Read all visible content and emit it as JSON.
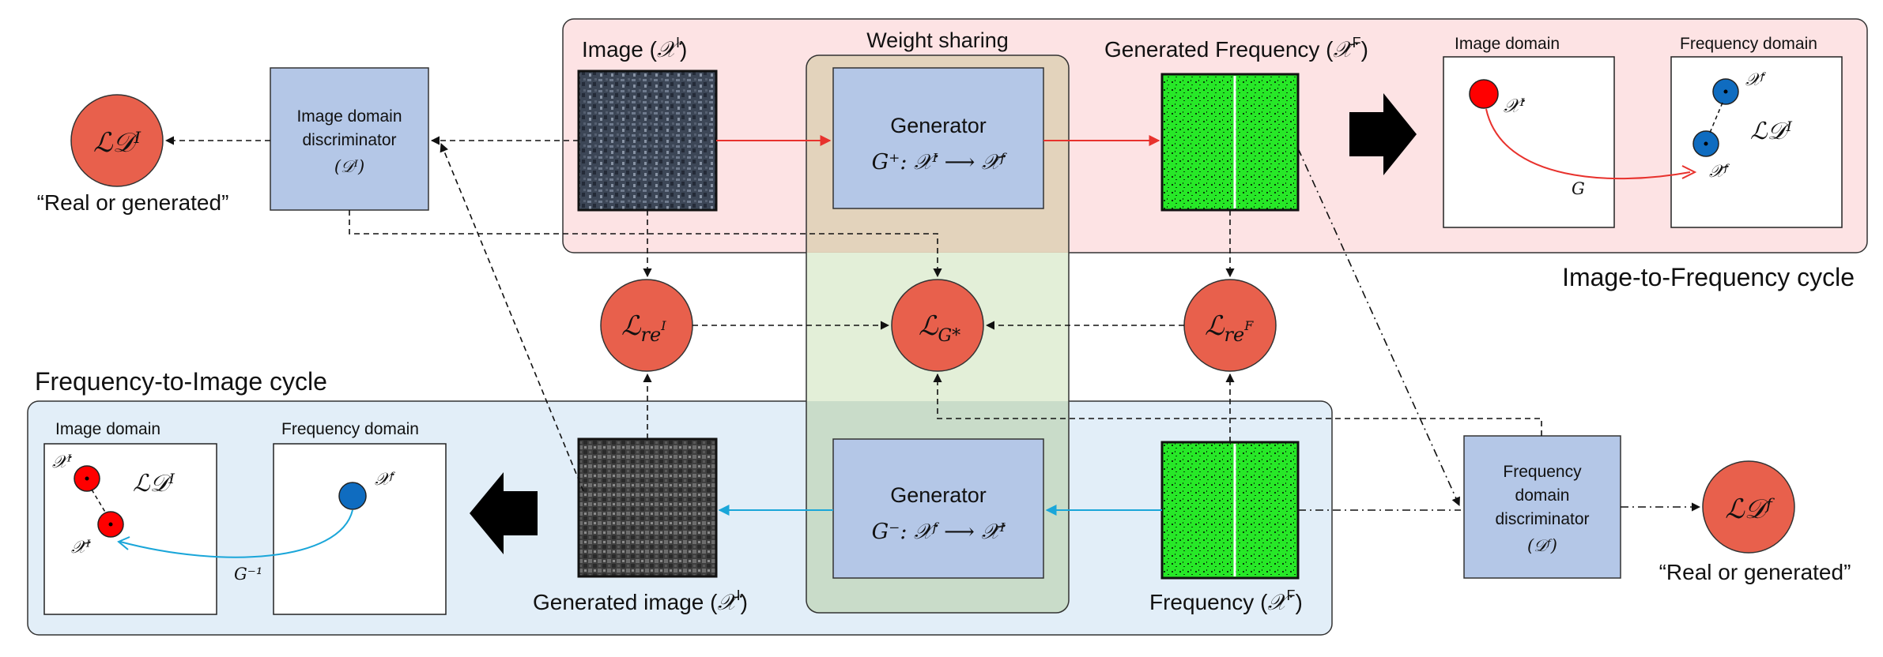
{
  "colors": {
    "red_arrow": "#e8322d",
    "blue_arrow": "#1aa6d9",
    "panel_pink": "#fde3e4",
    "panel_blue": "#e2eef8",
    "shared_beige": "#e2d2b9",
    "shared_green": "#e3efd8",
    "shared_dark": "#c9dcc9",
    "box_fill": "#b4c7e7",
    "loss_fill": "#e8604c",
    "point_red": "#ff0000",
    "point_blue": "#0f6cc0",
    "spectrum": "#27e827"
  },
  "top_cycle": {
    "title": "Image-to-Frequency cycle",
    "image_label": "Image (",
    "image_sym": "𝒳",
    "image_sup": "I",
    "gen_freq_label": "Generated Frequency (",
    "gen_freq_sym": "𝒳̄",
    "gen_freq_sup": "F",
    "generator_title": "Generator",
    "generator_formula": "G⁺: 𝒳ᴵ ⟶ 𝒳̄ᶠ",
    "image_domain": "Image domain",
    "frequency_domain": "Frequency domain",
    "pt_xi": "𝒳ᴵ",
    "pt_xf": "𝒳ᶠ",
    "pt_xfbar": "𝒳̄ᶠ",
    "mapping": "G",
    "loss": "ℒ𝒟ᴵ"
  },
  "bottom_cycle": {
    "title": "Frequency-to-Image cycle",
    "gen_image_label": "Generated image (",
    "gen_image_sym": "𝒳̄",
    "gen_image_sup": "I",
    "freq_label": "Frequency (",
    "freq_sym": "𝒳",
    "freq_sup": "F",
    "generator_title": "Generator",
    "generator_formula": "G⁻: 𝒳ᶠ ⟶ 𝒳̄ᴵ",
    "image_domain": "Image domain",
    "frequency_domain": "Frequency domain",
    "pt_xi": "𝒳ᴵ",
    "pt_xibar": "𝒳̄ᴵ",
    "pt_xf": "𝒳ᶠ",
    "mapping": "G⁻¹",
    "loss": "ℒ𝒟ᴵ"
  },
  "weight_sharing": "Weight sharing",
  "image_discriminator": {
    "line1": "Image domain",
    "line2": "discriminator",
    "line3": "(𝒟ᴵ)",
    "loss": "ℒ𝒟ᴵ",
    "caption": "“Real or generated”"
  },
  "frequency_discriminator": {
    "line1": "Frequency",
    "line2": "domain",
    "line3": "discriminator",
    "line4": "(𝒟ᶠ)",
    "loss": "ℒ𝒟ᶠ",
    "caption": "“Real or generated”"
  },
  "losses": {
    "re_i": "ℒ",
    "re_i_sub": "re",
    "re_i_supsub": "I",
    "g_star": "ℒ",
    "g_star_sub": "G*",
    "re_f": "ℒ",
    "re_f_sub": "re",
    "re_f_supsub": "F"
  }
}
